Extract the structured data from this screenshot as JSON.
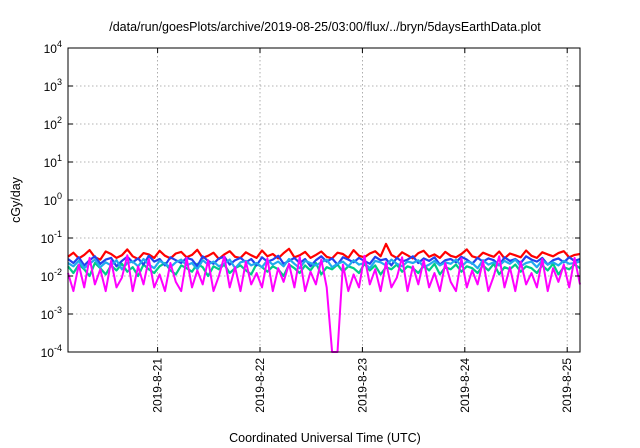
{
  "page_background": "#ffffff",
  "chart_data": {
    "type": "line",
    "title": "/data/run/goesPlots/archive/2019-08-25/03:00/flux/../bryn/5daysEarthData.plot",
    "xlabel": "Coordinated Universal Time (UTC)",
    "ylabel": "cGy/day",
    "y_scale": "log",
    "ylim": [
      0.0001,
      10000
    ],
    "y_ticks": [
      {
        "value": 0.0001,
        "base": "10",
        "exp": "-4"
      },
      {
        "value": 0.001,
        "base": "10",
        "exp": "-3"
      },
      {
        "value": 0.01,
        "base": "10",
        "exp": "-2"
      },
      {
        "value": 0.1,
        "base": "10",
        "exp": "-1"
      },
      {
        "value": 1,
        "base": "10",
        "exp": "0"
      },
      {
        "value": 10,
        "base": "10",
        "exp": "1"
      },
      {
        "value": 100,
        "base": "10",
        "exp": "2"
      },
      {
        "value": 1000,
        "base": "10",
        "exp": "3"
      },
      {
        "value": 10000,
        "base": "10",
        "exp": "4"
      }
    ],
    "xlim": [
      "2019-08-20 03:00",
      "2019-08-25 03:00"
    ],
    "x_ticks": [
      {
        "value": "2019-08-21 00:00",
        "label": "2019-8-21"
      },
      {
        "value": "2019-08-22 00:00",
        "label": "2019-8-22"
      },
      {
        "value": "2019-08-23 00:00",
        "label": "2019-8-23"
      },
      {
        "value": "2019-08-24 00:00",
        "label": "2019-8-24"
      },
      {
        "value": "2019-08-25 00:00",
        "label": "2019-8-25"
      }
    ],
    "grid": true,
    "legend": "none",
    "series": [
      {
        "color": "#ff0000",
        "level_range": [
          0.02,
          0.06
        ],
        "values": [
          0.032,
          0.041,
          0.029,
          0.036,
          0.048,
          0.031,
          0.027,
          0.044,
          0.038,
          0.03,
          0.035,
          0.05,
          0.033,
          0.028,
          0.04,
          0.037,
          0.03,
          0.046,
          0.034,
          0.029,
          0.039,
          0.043,
          0.031,
          0.036,
          0.049,
          0.03,
          0.034,
          0.041,
          0.028,
          0.037,
          0.045,
          0.032,
          0.03,
          0.042,
          0.035,
          0.03,
          0.047,
          0.033,
          0.038,
          0.029,
          0.04,
          0.052,
          0.031,
          0.035,
          0.043,
          0.03,
          0.036,
          0.044,
          0.032,
          0.029,
          0.041,
          0.038,
          0.03,
          0.048,
          0.034,
          0.031,
          0.039,
          0.045,
          0.033,
          0.07,
          0.036,
          0.03,
          0.042,
          0.035,
          0.029,
          0.04,
          0.046,
          0.032,
          0.037,
          0.03,
          0.043,
          0.034,
          0.031,
          0.038,
          0.05,
          0.033,
          0.03,
          0.041,
          0.036,
          0.032,
          0.044,
          0.029,
          0.039,
          0.035,
          0.031,
          0.047,
          0.034,
          0.03,
          0.042,
          0.037,
          0.033,
          0.04,
          0.045,
          0.031,
          0.036,
          0.038
        ]
      },
      {
        "color": "#00cc88",
        "level_range": [
          0.007,
          0.03
        ],
        "values": [
          0.018,
          0.012,
          0.02,
          0.015,
          0.01,
          0.022,
          0.016,
          0.011,
          0.019,
          0.014,
          0.021,
          0.013,
          0.017,
          0.01,
          0.02,
          0.015,
          0.012,
          0.018,
          0.022,
          0.014,
          0.011,
          0.019,
          0.016,
          0.013,
          0.021,
          0.017,
          0.01,
          0.018,
          0.015,
          0.02,
          0.012,
          0.016,
          0.019,
          0.014,
          0.011,
          0.021,
          0.017,
          0.013,
          0.018,
          0.015,
          0.01,
          0.02,
          0.016,
          0.012,
          0.019,
          0.014,
          0.022,
          0.011,
          0.017,
          0.015,
          0.02,
          0.013,
          0.018,
          0.016,
          0.012,
          0.021,
          0.014,
          0.019,
          0.011,
          0.017,
          0.015,
          0.02,
          0.013,
          0.018,
          0.016,
          0.012,
          0.019,
          0.014,
          0.021,
          0.011,
          0.017,
          0.015,
          0.02,
          0.013,
          0.018,
          0.016,
          0.012,
          0.019,
          0.014,
          0.021,
          0.011,
          0.017,
          0.015,
          0.02,
          0.013,
          0.018,
          0.016,
          0.012,
          0.019,
          0.014,
          0.021,
          0.011,
          0.017,
          0.015,
          0.02,
          0.016
        ]
      },
      {
        "color": "#ff00ff",
        "level_range": [
          0.003,
          0.04
        ],
        "values": [
          0.012,
          0.004,
          0.02,
          0.005,
          0.03,
          0.006,
          0.015,
          0.004,
          0.025,
          0.005,
          0.009,
          0.035,
          0.004,
          0.018,
          0.006,
          0.028,
          0.005,
          0.011,
          0.004,
          0.022,
          0.007,
          0.004,
          0.03,
          0.005,
          0.014,
          0.006,
          0.026,
          0.004,
          0.01,
          0.033,
          0.005,
          0.017,
          0.004,
          0.024,
          0.006,
          0.012,
          0.005,
          0.029,
          0.004,
          0.016,
          0.007,
          0.021,
          0.005,
          0.032,
          0.004,
          0.013,
          0.006,
          0.027,
          0.005,
          0.0001,
          0.0001,
          0.02,
          0.004,
          0.011,
          0.005,
          0.034,
          0.006,
          0.015,
          0.004,
          0.023,
          0.005,
          0.009,
          0.031,
          0.004,
          0.018,
          0.006,
          0.026,
          0.005,
          0.012,
          0.004,
          0.022,
          0.007,
          0.004,
          0.029,
          0.005,
          0.014,
          0.006,
          0.025,
          0.004,
          0.01,
          0.033,
          0.005,
          0.017,
          0.004,
          0.024,
          0.006,
          0.012,
          0.005,
          0.028,
          0.004,
          0.016,
          0.007,
          0.02,
          0.005,
          0.03,
          0.006
        ]
      },
      {
        "color": "#2244ee",
        "level_range": [
          0.012,
          0.045
        ],
        "values": [
          0.028,
          0.022,
          0.031,
          0.019,
          0.026,
          0.033,
          0.021,
          0.027,
          0.03,
          0.018,
          0.025,
          0.032,
          0.023,
          0.029,
          0.02,
          0.034,
          0.024,
          0.028,
          0.019,
          0.031,
          0.026,
          0.022,
          0.03,
          0.027,
          0.018,
          0.033,
          0.025,
          0.021,
          0.029,
          0.032,
          0.02,
          0.026,
          0.03,
          0.023,
          0.028,
          0.019,
          0.031,
          0.024,
          0.027,
          0.034,
          0.021,
          0.025,
          0.03,
          0.022,
          0.028,
          0.018,
          0.026,
          0.033,
          0.024,
          0.029,
          0.02,
          0.031,
          0.027,
          0.023,
          0.03,
          0.025,
          0.021,
          0.032,
          0.026,
          0.028,
          0.019,
          0.03,
          0.024,
          0.027,
          0.033,
          0.022,
          0.029,
          0.025,
          0.031,
          0.02,
          0.026,
          0.028,
          0.023,
          0.032,
          0.027,
          0.021,
          0.03,
          0.024,
          0.029,
          0.026,
          0.019,
          0.031,
          0.025,
          0.028,
          0.022,
          0.033,
          0.027,
          0.024,
          0.03,
          0.02,
          0.026,
          0.029,
          0.023,
          0.031,
          0.025,
          0.028
        ]
      },
      {
        "color": "#22aaee",
        "level_range": [
          0.01,
          0.035
        ],
        "values": [
          0.022,
          0.018,
          0.025,
          0.016,
          0.021,
          0.027,
          0.017,
          0.023,
          0.019,
          0.026,
          0.015,
          0.022,
          0.024,
          0.018,
          0.028,
          0.02,
          0.016,
          0.025,
          0.021,
          0.017,
          0.023,
          0.027,
          0.019,
          0.022,
          0.015,
          0.026,
          0.02,
          0.024,
          0.018,
          0.021,
          0.027,
          0.016,
          0.023,
          0.025,
          0.019,
          0.022,
          0.017,
          0.026,
          0.02,
          0.024,
          0.018,
          0.028,
          0.021,
          0.016,
          0.025,
          0.022,
          0.019,
          0.023,
          0.027,
          0.017,
          0.021,
          0.024,
          0.018,
          0.026,
          0.02,
          0.022,
          0.016,
          0.025,
          0.023,
          0.019,
          0.027,
          0.021,
          0.018,
          0.024,
          0.022,
          0.026,
          0.017,
          0.02,
          0.025,
          0.019,
          0.023,
          0.021,
          0.027,
          0.018,
          0.024,
          0.022,
          0.016,
          0.026,
          0.02,
          0.023,
          0.019,
          0.025,
          0.021,
          0.027,
          0.018,
          0.022,
          0.024,
          0.017,
          0.026,
          0.02,
          0.023,
          0.019,
          0.025,
          0.021,
          0.022,
          0.024
        ]
      }
    ]
  }
}
